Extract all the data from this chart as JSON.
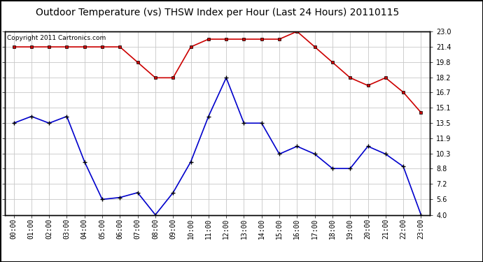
{
  "title": "Outdoor Temperature (vs) THSW Index per Hour (Last 24 Hours) 20110115",
  "copyright": "Copyright 2011 Cartronics.com",
  "hours": [
    "00:00",
    "01:00",
    "02:00",
    "03:00",
    "04:00",
    "05:00",
    "06:00",
    "07:00",
    "08:00",
    "09:00",
    "10:00",
    "11:00",
    "12:00",
    "13:00",
    "14:00",
    "15:00",
    "16:00",
    "17:00",
    "18:00",
    "19:00",
    "20:00",
    "21:00",
    "22:00",
    "23:00"
  ],
  "red_data": [
    21.4,
    21.4,
    21.4,
    21.4,
    21.4,
    21.4,
    21.4,
    19.8,
    18.2,
    18.2,
    21.4,
    22.2,
    22.2,
    22.2,
    22.2,
    22.2,
    23.0,
    21.4,
    19.8,
    18.2,
    17.4,
    18.2,
    16.7,
    14.6
  ],
  "blue_data": [
    13.5,
    14.2,
    13.5,
    14.2,
    9.5,
    5.6,
    5.8,
    6.3,
    4.0,
    6.3,
    9.5,
    14.2,
    18.2,
    13.5,
    13.5,
    10.3,
    11.1,
    10.3,
    8.8,
    8.8,
    11.1,
    10.3,
    9.0,
    4.0
  ],
  "ylim": [
    4.0,
    23.0
  ],
  "yticks": [
    4.0,
    5.6,
    7.2,
    8.8,
    10.3,
    11.9,
    13.5,
    15.1,
    16.7,
    18.2,
    19.8,
    21.4,
    23.0
  ],
  "red_color": "#cc0000",
  "blue_color": "#0000cc",
  "grid_color": "#c8c8c8",
  "bg_color": "#ffffff",
  "title_fontsize": 10,
  "copyright_fontsize": 6.5,
  "tick_fontsize": 7
}
